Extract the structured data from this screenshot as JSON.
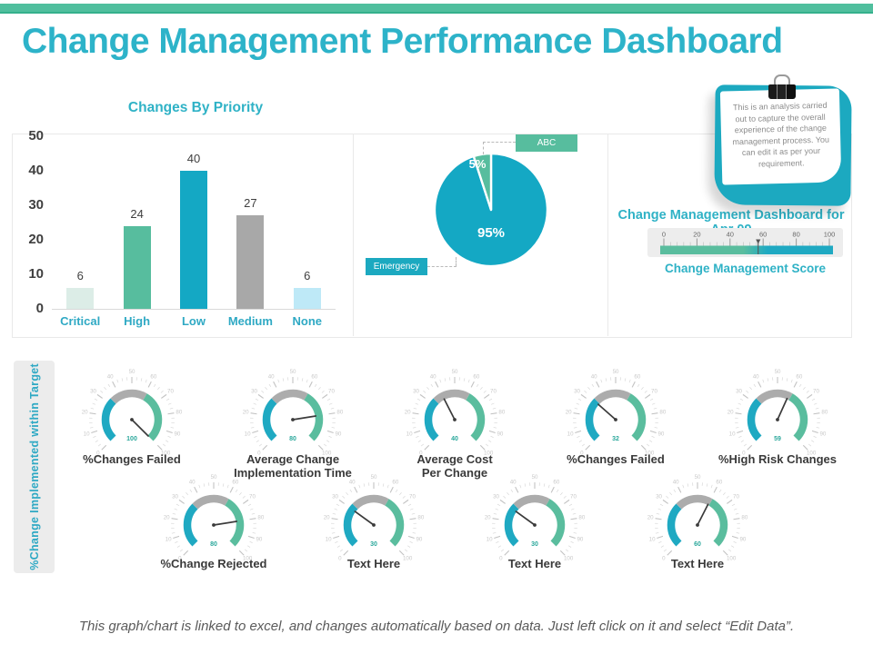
{
  "slide": {
    "title": "Change Management Performance Dashboard",
    "footer_note": "This graph/chart is linked to excel, and changes automatically based on data. Just left click on it and select “Edit Data”.",
    "accent_teal": "#1FA9C2",
    "accent_green": "#57BD9E",
    "accent_gray": "#A8A8A8"
  },
  "sticky_note": {
    "text": "This is an analysis carried out to capture the overall experience of the change management process. You can edit it as per your requirement."
  },
  "chart_data": [
    {
      "id": "changes-by-priority",
      "type": "bar",
      "title": "Changes By Priority",
      "categories": [
        "Critical",
        "High",
        "Low",
        "Medium",
        "None"
      ],
      "values": [
        6,
        24,
        40,
        27,
        6
      ],
      "value_labels": [
        "6",
        "24",
        "40",
        "27",
        "6"
      ],
      "bar_colors": [
        "#DCEDE7",
        "#57BD9E",
        "#14A8C4",
        "#A8A8A8",
        "#BEE9F7"
      ],
      "ylim": [
        0,
        50
      ],
      "yticks": [
        0,
        10,
        20,
        30,
        40,
        50
      ],
      "grid": false
    },
    {
      "id": "change-type-pie",
      "type": "pie",
      "labels": [
        "Emergency",
        "ABC"
      ],
      "values": [
        95,
        5
      ],
      "colors": [
        "#14A8C4",
        "#57BD9E"
      ],
      "data_labels": [
        "95%",
        "5%"
      ],
      "legend_position": "callout-boxes"
    },
    {
      "id": "change-management-score",
      "type": "gauge",
      "subtype": "linear",
      "title": "Change Management Dashboard for Apr 09",
      "axis_label": "Change Management Score",
      "ticks": [
        0,
        20,
        40,
        60,
        80,
        100
      ],
      "range": [
        0,
        100
      ],
      "value": 57
    },
    {
      "id": "kpi-gauges",
      "type": "gauge",
      "subtype": "radial",
      "group_label": "%Change Implemented within Target",
      "range": [
        0,
        100
      ],
      "tick_step": 10,
      "rows": [
        [
          {
            "label": "%Changes Failed",
            "value": 100
          },
          {
            "label": "Average Change Implementation Time",
            "value": 80
          },
          {
            "label": "Average Cost Per Change",
            "value": 40
          },
          {
            "label": "%Changes Failed",
            "value": 32
          },
          {
            "label": "%High Risk Changes",
            "value": 59
          }
        ],
        [
          {
            "label": "%Change Rejected",
            "value": 80
          },
          {
            "label": "Text Here",
            "value": 30
          },
          {
            "label": "Text Here",
            "value": 30
          },
          {
            "label": "Text Here",
            "value": 60
          }
        ]
      ]
    }
  ]
}
